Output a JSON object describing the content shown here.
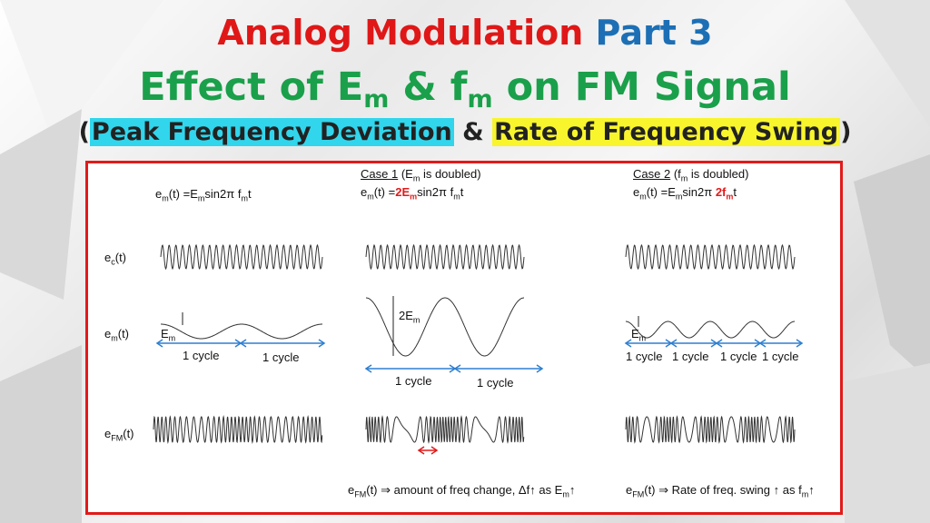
{
  "title": {
    "line1_a": "Analog Modulation",
    "line1_b": "Part 3",
    "line2_a": "Effect of E",
    "line2_sub1": "m",
    "line2_b": " & f",
    "line2_sub2": "m",
    "line2_c": " on FM Signal",
    "line3_open": "(",
    "line3_a": "Peak Frequency Deviation",
    "line3_mid": " & ",
    "line3_b": "Rate of Frequency Swing",
    "line3_close": ")"
  },
  "diagram": {
    "col1": {
      "eq_a": "e",
      "eq_a_sub": "m",
      "eq_b": "(t) =E",
      "eq_b_sub": "m",
      "eq_c": "sin2π f",
      "eq_c_sub": "m",
      "eq_d": "t"
    },
    "col2": {
      "case": "Case 1",
      "case_a": " (E",
      "case_sub": "m",
      "case_b": " is doubled)",
      "eq_a": "e",
      "eq_a_sub": "m",
      "eq_b": "(t) =",
      "eq_red": "2E",
      "eq_red_sub": "m",
      "eq_c": "sin2π f",
      "eq_c_sub": "m",
      "eq_d": "t",
      "amp": "2E",
      "amp_sub": "m",
      "cycle": "1 cycle",
      "note_a": "e",
      "note_a_sub": "FM",
      "note_b": "(t) ⇒ amount of freq change, Δf↑ as E",
      "note_b_sub": "m",
      "note_c": "↑"
    },
    "col3": {
      "case": "Case 2",
      "case_a": " (f",
      "case_sub": "m",
      "case_b": " is doubled)",
      "eq_a": "e",
      "eq_a_sub": "m",
      "eq_b": "(t) =E",
      "eq_b_sub": "m",
      "eq_c": "sin2π ",
      "eq_red": "2f",
      "eq_red_sub": "m",
      "eq_d": "t",
      "amp": "E",
      "amp_sub": "m",
      "cycle": "1 cycle",
      "note_a": "e",
      "note_a_sub": "FM",
      "note_b": "(t) ⇒ Rate of freq. swing ↑ as f",
      "note_b_sub": "m",
      "note_c": "↑"
    },
    "row_labels": {
      "ec": "e",
      "ec_sub": "c",
      "ec_tail": "(t)",
      "em": "e",
      "em_sub": "m",
      "em_tail": "(t)",
      "efm": "e",
      "efm_sub": "FM",
      "efm_tail": "(t)"
    },
    "col1_amp": "E",
    "col1_amp_sub": "m",
    "cycle_label": "1 cycle"
  },
  "colors": {
    "title_red": "#e01717",
    "title_blue": "#1c6fb5",
    "title_green": "#1aa04a",
    "highlight_cyan": "#31d6ec",
    "highlight_yellow": "#f8f52c",
    "frame": "#e21a1a",
    "arrow_blue": "#2f7fd0"
  }
}
